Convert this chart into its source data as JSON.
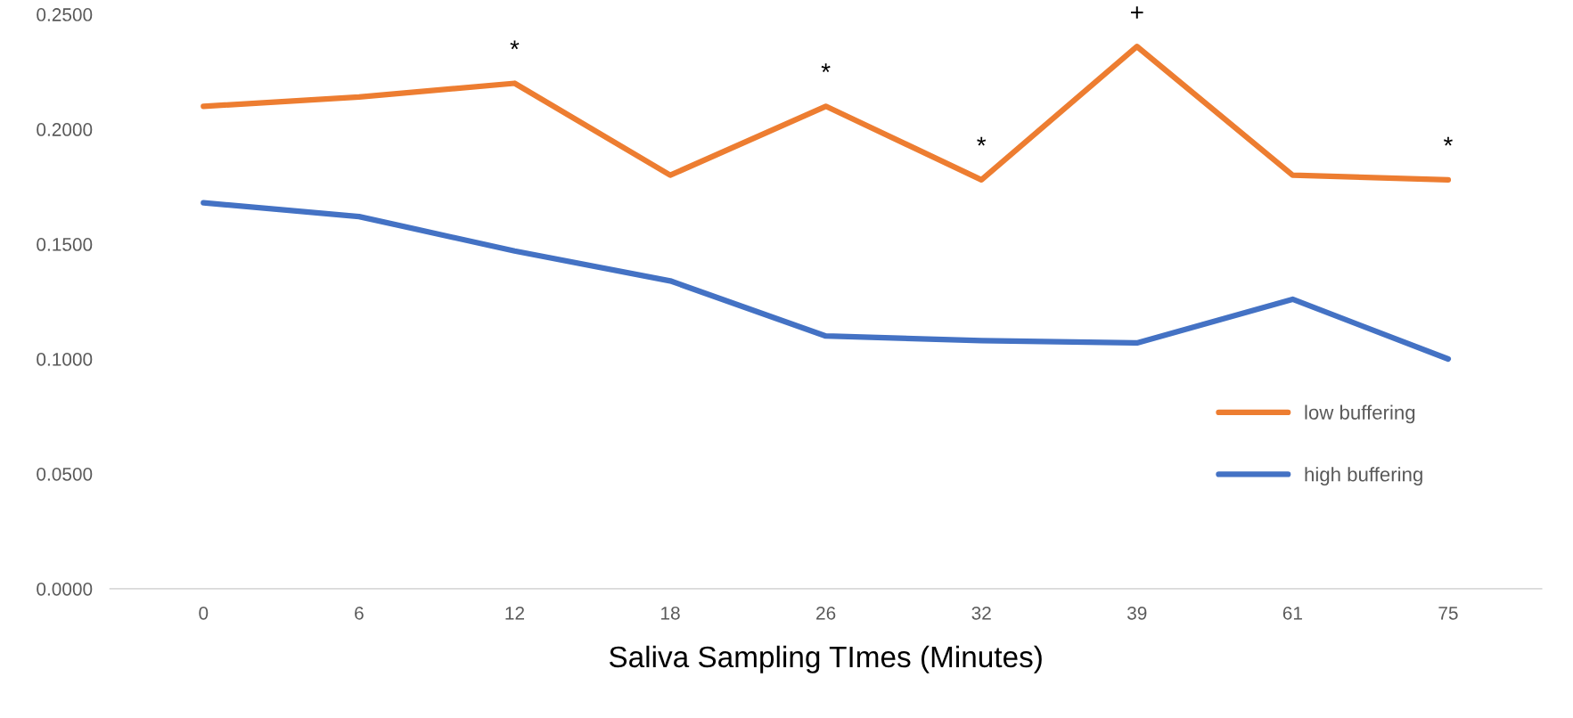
{
  "chart_data": {
    "type": "line",
    "xlabel": "Saliva Sampling TImes (Minutes)",
    "categories": [
      "0",
      "6",
      "12",
      "18",
      "26",
      "32",
      "39",
      "61",
      "75"
    ],
    "series": [
      {
        "name": "low buffering",
        "color": "#ed7d31",
        "values": [
          0.21,
          0.214,
          0.22,
          0.18,
          0.21,
          0.178,
          0.236,
          0.18,
          0.178
        ]
      },
      {
        "name": "high buffering",
        "color": "#4472c4",
        "values": [
          0.168,
          0.162,
          0.147,
          0.134,
          0.11,
          0.108,
          0.107,
          0.126,
          0.1
        ]
      }
    ],
    "ylim": [
      0,
      0.25
    ],
    "yticks": [
      {
        "value": 0,
        "label": "0.0000"
      },
      {
        "value": 0.05,
        "label": "0.0500"
      },
      {
        "value": 0.1,
        "label": "0.1000"
      },
      {
        "value": 0.15,
        "label": "0.1500"
      },
      {
        "value": 0.2,
        "label": "0.2000"
      },
      {
        "value": 0.25,
        "label": "0.2500"
      }
    ],
    "annotations": [
      {
        "text": "*",
        "x": "12",
        "y": 0.22
      },
      {
        "text": "*",
        "x": "26",
        "y": 0.21
      },
      {
        "text": "*",
        "x": "32",
        "y": 0.178
      },
      {
        "text": "+",
        "x": "39",
        "y": 0.236
      },
      {
        "text": "*",
        "x": "75",
        "y": 0.178
      }
    ],
    "grid": false,
    "legend": "right",
    "marker": "none",
    "line_style": "solid"
  }
}
